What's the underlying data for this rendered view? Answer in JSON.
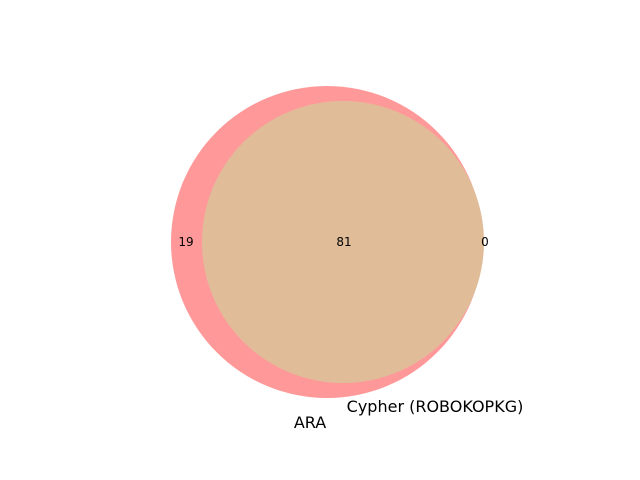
{
  "chart_data": {
    "type": "venn",
    "sets": [
      {
        "name": "ARA",
        "size": 100,
        "color": "#ff9999"
      },
      {
        "name": "Cypher (ROBOKOPKG)",
        "size": 81,
        "color": "#e0bd98"
      }
    ],
    "regions": {
      "only_a": "19",
      "intersection": "81",
      "only_b": "0"
    },
    "overlap_color": "#e0bd98",
    "background": "#ffffff"
  }
}
